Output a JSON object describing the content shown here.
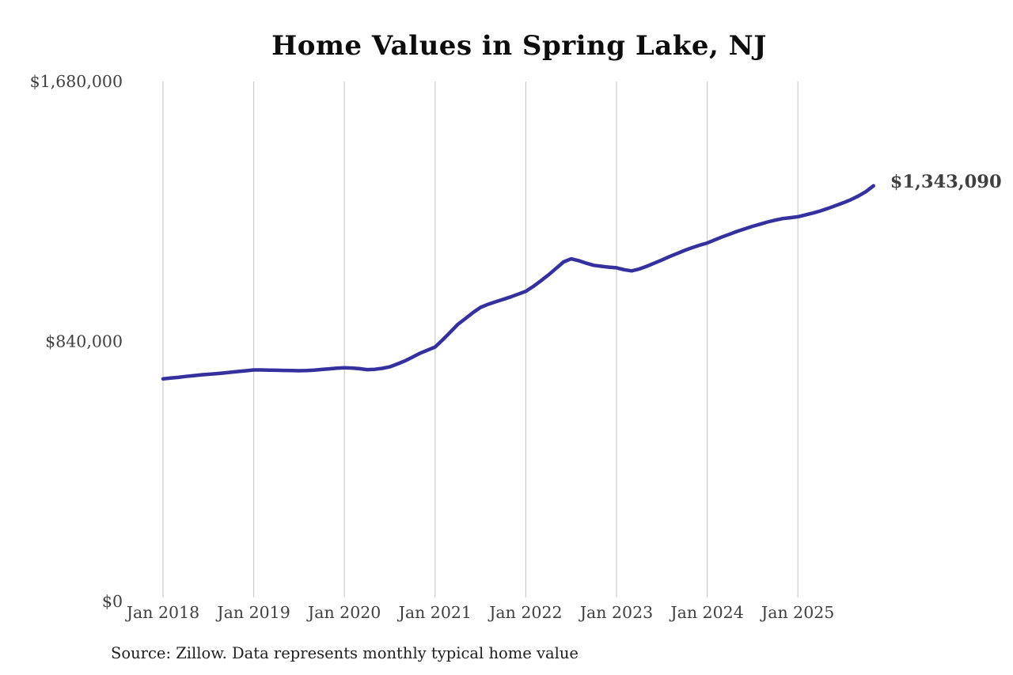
{
  "source_note": "Source: Zillow. Data represents monthly typical home value",
  "colors": {
    "line": "#34309e",
    "end_label": "#2e2b9d",
    "gridline": "#cccccc",
    "axis_text": "#3f3f3f",
    "title_text": "#0d0d0d",
    "source_text": "#1f1f1f",
    "background": "#ffffff"
  },
  "chart_data": {
    "type": "line",
    "title": "Home Values in Spring Lake, NJ",
    "xlabel": "",
    "ylabel": "",
    "ylim": [
      0,
      1680000
    ],
    "grid": "vertical-yearly",
    "legend": "none",
    "x_tick_labels": [
      "Jan 2018",
      "Jan 2019",
      "Jan 2020",
      "Jan 2021",
      "Jan 2022",
      "Jan 2023",
      "Jan 2024",
      "Jan 2025"
    ],
    "y_tick_labels": [
      "$0",
      "$840,000",
      "$1,680,000"
    ],
    "y_tick_values": [
      0,
      840000,
      1680000
    ],
    "last_point_label": "$1,343,090",
    "last_point_value": 1343090,
    "series": [
      {
        "name": "Monthly typical home value",
        "months": [
          "Jan 2018",
          "Feb 2018",
          "Mar 2018",
          "Apr 2018",
          "May 2018",
          "Jun 2018",
          "Jul 2018",
          "Aug 2018",
          "Sep 2018",
          "Oct 2018",
          "Nov 2018",
          "Dec 2018",
          "Jan 2019",
          "Feb 2019",
          "Mar 2019",
          "Apr 2019",
          "May 2019",
          "Jun 2019",
          "Jul 2019",
          "Aug 2019",
          "Sep 2019",
          "Oct 2019",
          "Nov 2019",
          "Dec 2019",
          "Jan 2020",
          "Feb 2020",
          "Mar 2020",
          "Apr 2020",
          "May 2020",
          "Jun 2020",
          "Jul 2020",
          "Aug 2020",
          "Sep 2020",
          "Oct 2020",
          "Nov 2020",
          "Dec 2020",
          "Jan 2021",
          "Feb 2021",
          "Mar 2021",
          "Apr 2021",
          "May 2021",
          "Jun 2021",
          "Jul 2021",
          "Aug 2021",
          "Sep 2021",
          "Oct 2021",
          "Nov 2021",
          "Dec 2021",
          "Jan 2022",
          "Feb 2022",
          "Mar 2022",
          "Apr 2022",
          "May 2022",
          "Jun 2022",
          "Jul 2022",
          "Aug 2022",
          "Sep 2022",
          "Oct 2022",
          "Nov 2022",
          "Dec 2022",
          "Jan 2023",
          "Feb 2023",
          "Mar 2023",
          "Apr 2023",
          "May 2023",
          "Jun 2023",
          "Jul 2023",
          "Aug 2023",
          "Sep 2023",
          "Oct 2023",
          "Nov 2023",
          "Dec 2023",
          "Jan 2024",
          "Feb 2024",
          "Mar 2024",
          "Apr 2024",
          "May 2024",
          "Jun 2024",
          "Jul 2024",
          "Aug 2024",
          "Sep 2024",
          "Oct 2024",
          "Nov 2024",
          "Dec 2024",
          "Jan 2025",
          "Feb 2025",
          "Mar 2025",
          "Apr 2025",
          "May 2025",
          "Jun 2025",
          "Jul 2025",
          "Aug 2025",
          "Sep 2025",
          "Oct 2025",
          "Nov 2025"
        ],
        "values": [
          719000,
          721500,
          724000,
          727000,
          729500,
          732000,
          734000,
          736000,
          738000,
          740500,
          743000,
          745500,
          748000,
          748000,
          747500,
          747000,
          746500,
          746000,
          745500,
          746000,
          747500,
          749500,
          751500,
          753500,
          755000,
          754000,
          752000,
          749000,
          750000,
          753000,
          758000,
          767000,
          777000,
          789000,
          802000,
          812000,
          822000,
          845000,
          870000,
          895000,
          914000,
          933000,
          950000,
          960000,
          968000,
          976000,
          984000,
          993000,
          1002000,
          1018000,
          1036000,
          1055000,
          1076000,
          1097000,
          1107000,
          1101000,
          1093000,
          1086000,
          1083000,
          1080000,
          1078000,
          1072000,
          1068000,
          1074000,
          1083000,
          1093000,
          1103000,
          1114000,
          1124000,
          1134000,
          1143000,
          1151000,
          1158000,
          1168000,
          1178000,
          1187000,
          1196000,
          1204000,
          1212000,
          1219000,
          1226000,
          1232000,
          1237000,
          1240000,
          1243000,
          1249000,
          1255000,
          1262000,
          1270000,
          1279000,
          1288000,
          1298000,
          1310000,
          1324000,
          1343090
        ]
      }
    ]
  }
}
